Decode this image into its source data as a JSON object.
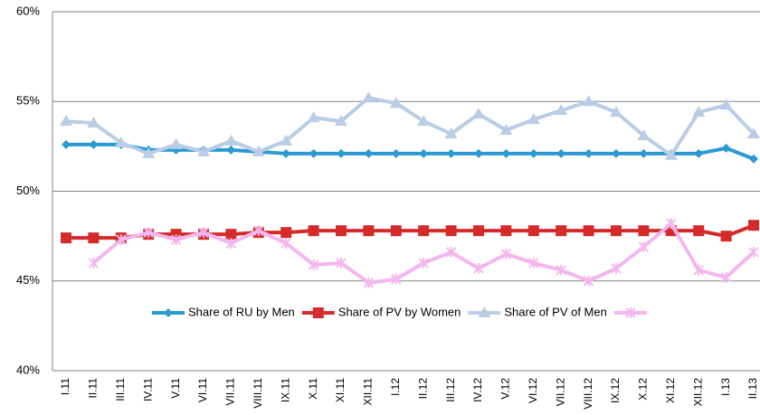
{
  "chart_data": {
    "type": "line",
    "categories": [
      "I.11",
      "II.11",
      "III.11",
      "IV.11",
      "V.11",
      "VI.11",
      "VII.11",
      "VIII.11",
      "IX.11",
      "X.11",
      "XI.11",
      "XII.11",
      "I.12",
      "II.12",
      "III.12",
      "IV.12",
      "V.12",
      "VI.12",
      "VII.12",
      "VIII.12",
      "IX.12",
      "X.12",
      "XI.12",
      "XII.12",
      "I.13",
      "II.13"
    ],
    "series": [
      {
        "name": "Share of  RU by Men",
        "color": "#2a9ad0",
        "marker": "diamond",
        "values": [
          52.6,
          52.6,
          52.6,
          52.3,
          52.3,
          52.3,
          52.3,
          52.2,
          52.1,
          52.1,
          52.1,
          52.1,
          52.1,
          52.1,
          52.1,
          52.1,
          52.1,
          52.1,
          52.1,
          52.1,
          52.1,
          52.1,
          52.1,
          52.1,
          52.4,
          51.8
        ]
      },
      {
        "name": "Share of PV by Women",
        "color": "#d42a2a",
        "marker": "square",
        "values": [
          47.4,
          47.4,
          47.4,
          47.6,
          47.6,
          47.6,
          47.6,
          47.7,
          47.7,
          47.8,
          47.8,
          47.8,
          47.8,
          47.8,
          47.8,
          47.8,
          47.8,
          47.8,
          47.8,
          47.8,
          47.8,
          47.8,
          47.8,
          47.8,
          47.5,
          48.1
        ]
      },
      {
        "name": "Share of PV of Men",
        "color": "#b9cde5",
        "marker": "triangle",
        "values": [
          53.9,
          53.8,
          52.7,
          52.1,
          52.6,
          52.2,
          52.8,
          52.2,
          52.8,
          54.1,
          53.9,
          55.2,
          54.9,
          53.9,
          53.2,
          54.3,
          53.4,
          54.0,
          54.5,
          55.0,
          54.4,
          53.1,
          52.0,
          54.4,
          54.8,
          53.2
        ]
      },
      {
        "color": "#f4b6ef",
        "marker": "star",
        "values": [
          null,
          46.0,
          47.3,
          47.7,
          47.3,
          47.7,
          47.1,
          47.8,
          47.1,
          45.9,
          46.0,
          44.9,
          45.1,
          46.0,
          46.6,
          45.7,
          46.5,
          46.0,
          45.6,
          45.0,
          45.7,
          46.9,
          48.2,
          45.6,
          45.2,
          46.6
        ]
      }
    ],
    "ylim": [
      40,
      60
    ],
    "yticks": [
      {
        "value": 40,
        "label": "40%"
      },
      {
        "value": 45,
        "label": "45%"
      },
      {
        "value": 50,
        "label": "50%"
      },
      {
        "value": 55,
        "label": "55%"
      },
      {
        "value": 60,
        "label": "60%"
      }
    ],
    "grid": true,
    "legend": "bottom"
  }
}
